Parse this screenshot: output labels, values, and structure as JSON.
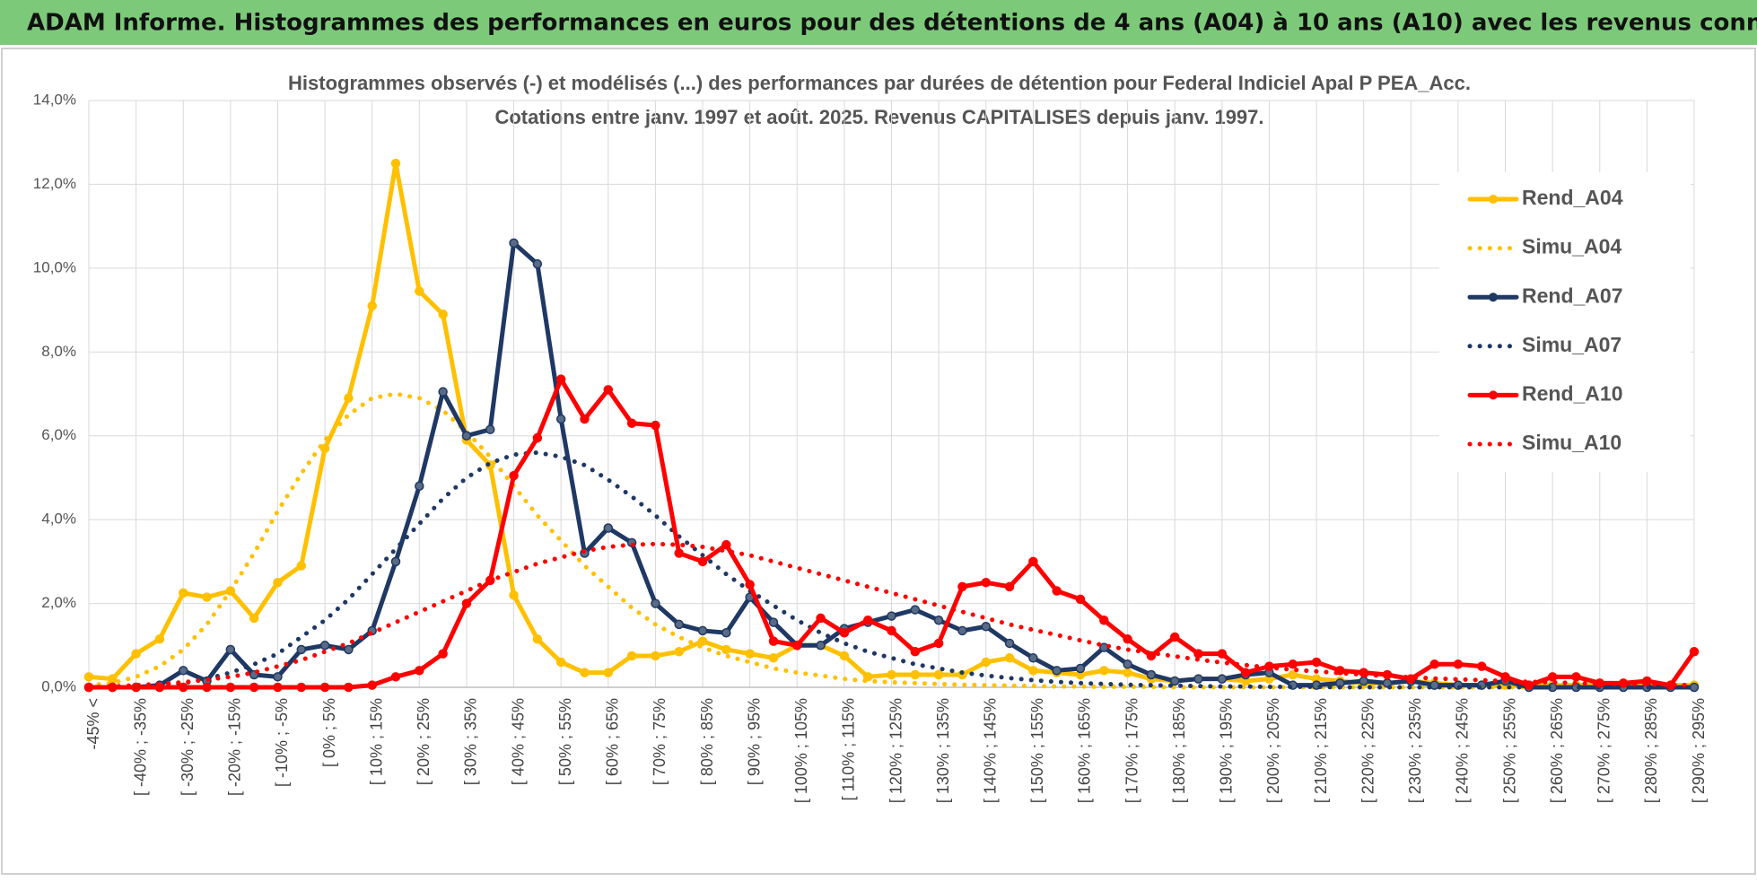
{
  "header": {
    "title": "ADAM Informe. Histogrammes des performances en euros pour des détentions de 4 ans (A04) à 10 ans (A10) avec les revenus connus capitalisés"
  },
  "chart_data": {
    "type": "line",
    "title": "Histogrammes observés (-) et modélisés (...) des performances par durées de détention pour Federal Indiciel Apal P PEA_Acc.",
    "subtitle": "Cotations entre janv. 1997 et août. 2025. Revenus CAPITALISES depuis janv. 1997.",
    "categories": [
      "-45% <",
      null,
      "[ -40% ; -35%",
      null,
      "[ -30% ; -25%",
      null,
      "[ -20% ; -15%",
      null,
      "[ -10% ; -5%",
      null,
      "[ 0% ; 5%",
      null,
      "[ 10% ; 15%",
      null,
      "[ 20% ; 25%",
      null,
      "[ 30% ; 35%",
      null,
      "[ 40% ; 45%",
      null,
      "[ 50% ; 55%",
      null,
      "[ 60% ; 65%",
      null,
      "[ 70% ; 75%",
      null,
      "[ 80% ; 85%",
      null,
      "[ 90% ; 95%",
      null,
      "[ 100% ; 105%",
      null,
      "[ 110% ; 115%",
      null,
      "[ 120% ; 125%",
      null,
      "[ 130% ; 135%",
      null,
      "[ 140% ; 145%",
      null,
      "[ 150% ; 155%",
      null,
      "[ 160% ; 165%",
      null,
      "[ 170% ; 175%",
      null,
      "[ 180% ; 185%",
      null,
      "[ 190% ; 195%",
      null,
      "[ 200% ; 205%",
      null,
      "[ 210% ; 215%",
      null,
      "[ 220% ; 225%",
      null,
      "[ 230% ; 235%",
      null,
      "[ 240% ; 245%",
      null,
      "[ 250% ; 255%",
      null,
      "[ 260% ; 265%",
      null,
      "[ 270% ; 275%",
      null,
      "[ 280% ; 285%",
      null,
      "[ 290% ; 295%"
    ],
    "series": [
      {
        "name": "Rend_A04",
        "color": "#ffc000",
        "line_style": "solid",
        "markers": true,
        "values": [
          0.25,
          0.2,
          0.8,
          1.15,
          2.25,
          2.15,
          2.3,
          1.65,
          2.5,
          2.9,
          5.7,
          6.9,
          9.1,
          12.5,
          9.45,
          8.9,
          5.9,
          5.3,
          2.2,
          1.15,
          0.6,
          0.35,
          0.35,
          0.75,
          0.75,
          0.85,
          1.1,
          0.9,
          0.8,
          0.7,
          1.0,
          1.0,
          0.75,
          0.25,
          0.3,
          0.3,
          0.3,
          0.3,
          0.6,
          0.7,
          0.4,
          0.35,
          0.3,
          0.4,
          0.35,
          0.2,
          0.15,
          0.2,
          0.2,
          0.15,
          0.2,
          0.3,
          0.2,
          0.15,
          0.1,
          0.1,
          0.15,
          0.1,
          0.05,
          0.05,
          0.05,
          0.05,
          0.05,
          0.05,
          0.05,
          0.05,
          0.05,
          0.05,
          0.05
        ]
      },
      {
        "name": "Simu_A04",
        "color": "#ffc000",
        "line_style": "dotted",
        "markers": false,
        "values": [
          0.05,
          0.1,
          0.25,
          0.5,
          0.9,
          1.5,
          2.3,
          3.2,
          4.2,
          5.1,
          5.9,
          6.5,
          6.9,
          7.0,
          6.9,
          6.6,
          6.1,
          5.5,
          4.8,
          4.1,
          3.5,
          2.9,
          2.4,
          1.9,
          1.5,
          1.2,
          0.95,
          0.75,
          0.6,
          0.45,
          0.35,
          0.28,
          0.2,
          0.15,
          0.12,
          0.1,
          0.08,
          0.06,
          0.05,
          0.04,
          0.03,
          0.02,
          0.02,
          0.01,
          0.01,
          0.01,
          0,
          0,
          0,
          0,
          0,
          0,
          0,
          0,
          0,
          0,
          0,
          0,
          0,
          0,
          0,
          0,
          0,
          0,
          0,
          0,
          0,
          0,
          0
        ]
      },
      {
        "name": "Rend_A07",
        "color": "#1f3864",
        "line_style": "solid",
        "markers": true,
        "values": [
          0,
          0,
          0,
          0.05,
          0.4,
          0.15,
          0.9,
          0.3,
          0.25,
          0.9,
          1.0,
          0.9,
          1.35,
          3.0,
          4.8,
          7.05,
          6.0,
          6.15,
          10.6,
          10.1,
          6.4,
          3.2,
          3.8,
          3.45,
          2.0,
          1.5,
          1.35,
          1.3,
          2.15,
          1.55,
          1.0,
          1.0,
          1.4,
          1.55,
          1.7,
          1.85,
          1.6,
          1.35,
          1.45,
          1.05,
          0.7,
          0.4,
          0.45,
          0.95,
          0.55,
          0.3,
          0.15,
          0.2,
          0.2,
          0.3,
          0.35,
          0.05,
          0.05,
          0.1,
          0.15,
          0.1,
          0.15,
          0.05,
          0.05,
          0.05,
          0.15,
          0,
          0,
          0,
          0,
          0,
          0,
          0,
          0
        ]
      },
      {
        "name": "Simu_A07",
        "color": "#1f3864",
        "line_style": "dotted",
        "markers": false,
        "values": [
          0,
          0,
          0.02,
          0.05,
          0.1,
          0.2,
          0.35,
          0.55,
          0.8,
          1.2,
          1.6,
          2.1,
          2.7,
          3.3,
          3.9,
          4.5,
          5.0,
          5.35,
          5.55,
          5.6,
          5.5,
          5.3,
          4.95,
          4.55,
          4.1,
          3.6,
          3.15,
          2.7,
          2.3,
          1.95,
          1.6,
          1.3,
          1.05,
          0.85,
          0.7,
          0.55,
          0.45,
          0.35,
          0.28,
          0.22,
          0.17,
          0.13,
          0.1,
          0.08,
          0.06,
          0.05,
          0.04,
          0.03,
          0.02,
          0.02,
          0.01,
          0.01,
          0.01,
          0,
          0,
          0,
          0,
          0,
          0,
          0,
          0,
          0,
          0,
          0,
          0,
          0,
          0,
          0,
          0
        ]
      },
      {
        "name": "Rend_A10",
        "color": "#ff0000",
        "line_style": "solid",
        "markers": true,
        "values": [
          0,
          0,
          0,
          0,
          0,
          0,
          0,
          0,
          0,
          0,
          0,
          0,
          0.05,
          0.25,
          0.4,
          0.8,
          2.0,
          2.55,
          5.05,
          5.95,
          7.35,
          6.4,
          7.1,
          6.3,
          6.25,
          3.2,
          3.0,
          3.4,
          2.45,
          1.1,
          1.0,
          1.65,
          1.3,
          1.6,
          1.35,
          0.85,
          1.05,
          2.4,
          2.5,
          2.4,
          3.0,
          2.3,
          2.1,
          1.6,
          1.15,
          0.75,
          1.2,
          0.8,
          0.8,
          0.35,
          0.5,
          0.55,
          0.6,
          0.4,
          0.35,
          0.3,
          0.2,
          0.55,
          0.55,
          0.5,
          0.25,
          0.05,
          0.25,
          0.25,
          0.1,
          0.1,
          0.15,
          0.05,
          0.85
        ]
      },
      {
        "name": "Simu_A10",
        "color": "#ff0000",
        "line_style": "dotted",
        "markers": false,
        "values": [
          0,
          0.02,
          0.05,
          0.08,
          0.12,
          0.18,
          0.25,
          0.35,
          0.5,
          0.65,
          0.85,
          1.05,
          1.3,
          1.55,
          1.8,
          2.05,
          2.3,
          2.55,
          2.75,
          2.95,
          3.1,
          3.25,
          3.35,
          3.4,
          3.42,
          3.4,
          3.35,
          3.25,
          3.15,
          3.0,
          2.85,
          2.7,
          2.55,
          2.4,
          2.25,
          2.1,
          1.95,
          1.8,
          1.65,
          1.5,
          1.37,
          1.25,
          1.12,
          1.0,
          0.9,
          0.82,
          0.74,
          0.66,
          0.59,
          0.53,
          0.47,
          0.42,
          0.38,
          0.34,
          0.3,
          0.27,
          0.24,
          0.21,
          0.19,
          0.17,
          0.15,
          0.13,
          0.12,
          0.1,
          0.09,
          0.08,
          0.07,
          0.06,
          0.05
        ]
      }
    ],
    "ylim": [
      0,
      14
    ],
    "yticks": [
      {
        "value": 0,
        "label": "0,0%"
      },
      {
        "value": 2,
        "label": "2,0%"
      },
      {
        "value": 4,
        "label": "4,0%"
      },
      {
        "value": 6,
        "label": "6,0%"
      },
      {
        "value": 8,
        "label": "8,0%"
      },
      {
        "value": 10,
        "label": "10,0%"
      },
      {
        "value": 12,
        "label": "12,0%"
      },
      {
        "value": 14,
        "label": "14,0%"
      }
    ],
    "grid": true,
    "legend": "right"
  }
}
